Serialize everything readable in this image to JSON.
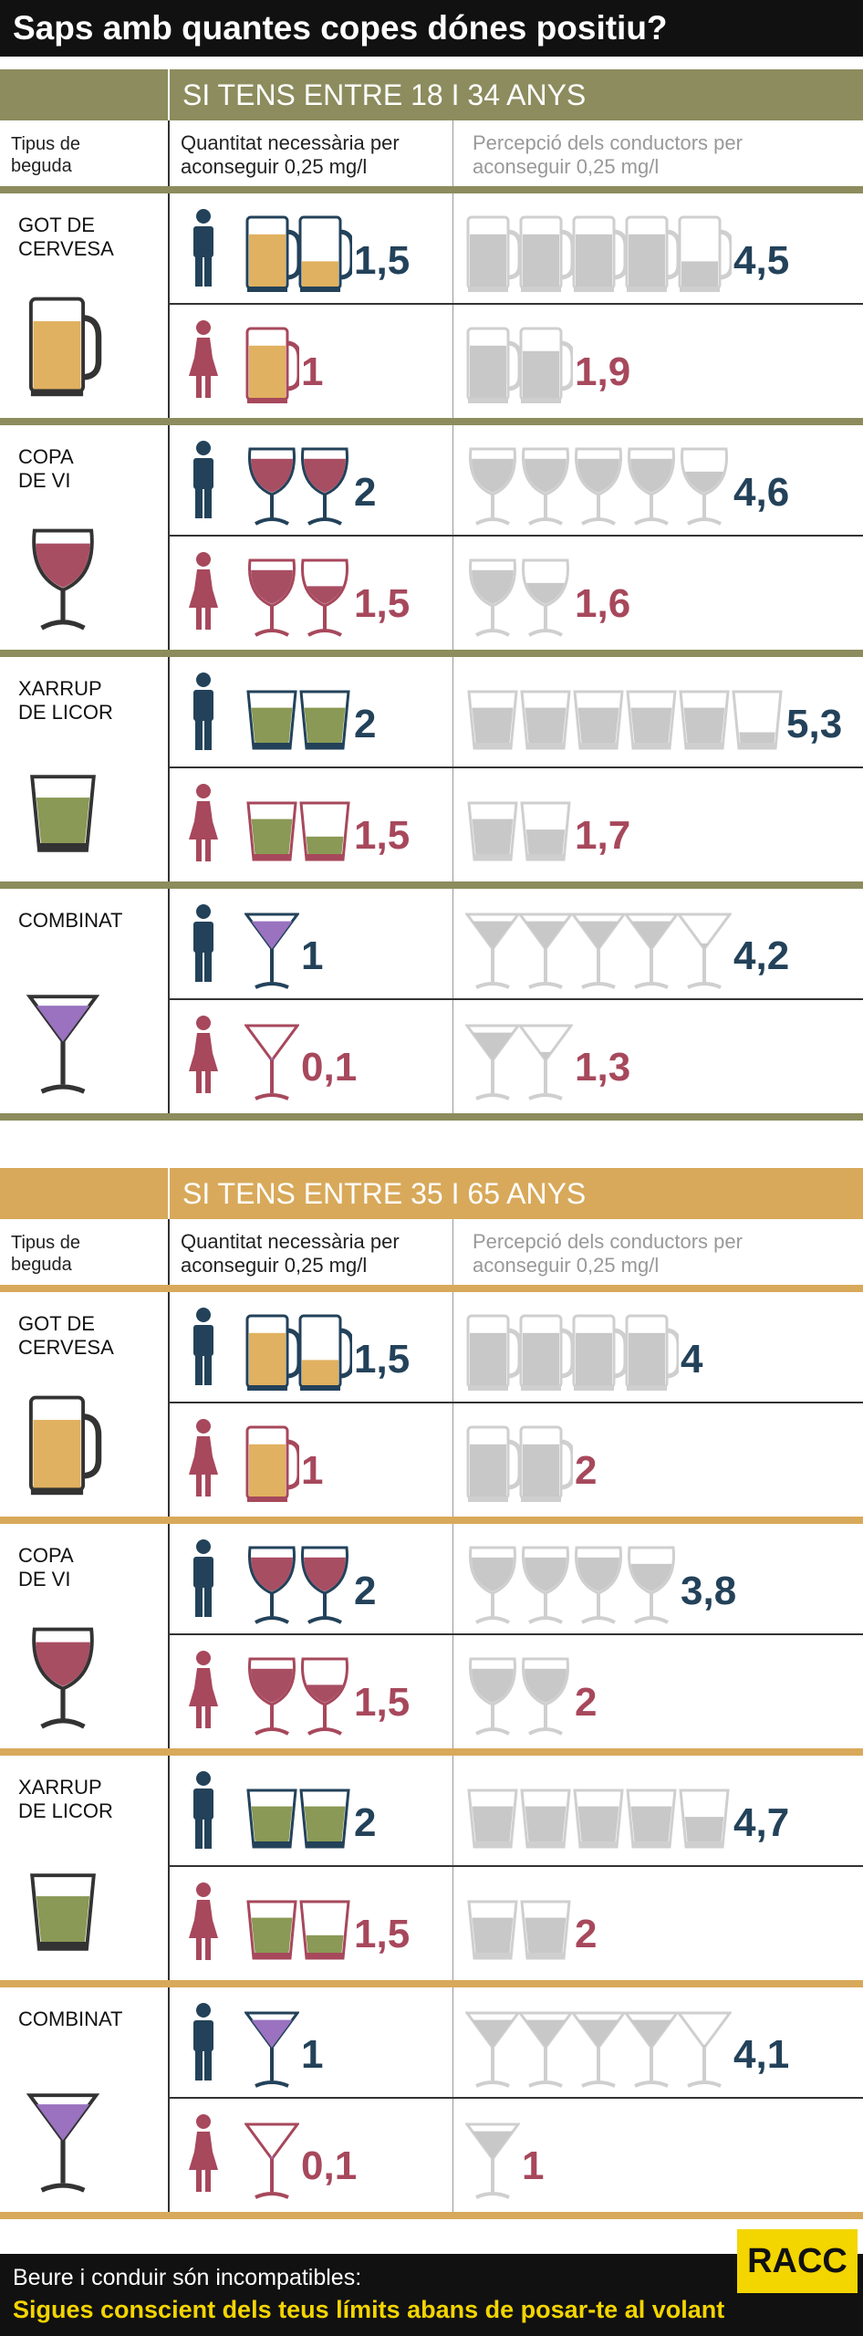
{
  "title": "Saps amb quantes copes dónes positiu?",
  "colors": {
    "band1": "#8c8c5e",
    "band2": "#d8a95a",
    "male": "#23425a",
    "female": "#a7485c",
    "beer": "#e0b160",
    "wine": "#a84e63",
    "liquor": "#8a9955",
    "cocktail": "#9a72c0",
    "grey": "#c8c8c8",
    "brand": "#f3d500"
  },
  "header": {
    "col1": "Tipus de\nbeguda",
    "col2": "Quantitat necessària per\naconseguir 0,25 mg/l",
    "col3": "Percepció dels conductors per\naconseguir 0,25 mg/l"
  },
  "sections": [
    {
      "band": "SI TENS ENTRE 18 I 34 ANYS",
      "drinks": [
        {
          "name": "GOT DE\nCERVESA",
          "icon": "beer-mug-icon",
          "male": {
            "value": "1,5",
            "amount": 1.5,
            "perceived": "4,5",
            "perceived_amount": 4.5
          },
          "female": {
            "value": "1",
            "amount": 1,
            "perceived": "1,9",
            "perceived_amount": 1.9
          }
        },
        {
          "name": "COPA\nDE VI",
          "icon": "wine-glass-icon",
          "male": {
            "value": "2",
            "amount": 2,
            "perceived": "4,6",
            "perceived_amount": 4.6
          },
          "female": {
            "value": "1,5",
            "amount": 1.5,
            "perceived": "1,6",
            "perceived_amount": 1.6
          }
        },
        {
          "name": "XARRUP\nDE LICOR",
          "icon": "shot-glass-icon",
          "male": {
            "value": "2",
            "amount": 2,
            "perceived": "5,3",
            "perceived_amount": 5.3
          },
          "female": {
            "value": "1,5",
            "amount": 1.5,
            "perceived": "1,7",
            "perceived_amount": 1.7
          }
        },
        {
          "name": "COMBINAT",
          "icon": "cocktail-glass-icon",
          "male": {
            "value": "1",
            "amount": 1,
            "perceived": "4,2",
            "perceived_amount": 4.2
          },
          "female": {
            "value": "0,1",
            "amount": 0.1,
            "perceived": "1,3",
            "perceived_amount": 1.3
          }
        }
      ]
    },
    {
      "band": "SI TENS ENTRE 35 I 65 ANYS",
      "drinks": [
        {
          "name": "GOT DE\nCERVESA",
          "icon": "beer-mug-icon",
          "male": {
            "value": "1,5",
            "amount": 1.5,
            "perceived": "4",
            "perceived_amount": 4
          },
          "female": {
            "value": "1",
            "amount": 1,
            "perceived": "2",
            "perceived_amount": 2
          }
        },
        {
          "name": "COPA\nDE VI",
          "icon": "wine-glass-icon",
          "male": {
            "value": "2",
            "amount": 2,
            "perceived": "3,8",
            "perceived_amount": 3.8
          },
          "female": {
            "value": "1,5",
            "amount": 1.5,
            "perceived": "2",
            "perceived_amount": 2
          }
        },
        {
          "name": "XARRUP\nDE LICOR",
          "icon": "shot-glass-icon",
          "male": {
            "value": "2",
            "amount": 2,
            "perceived": "4,7",
            "perceived_amount": 4.7
          },
          "female": {
            "value": "1,5",
            "amount": 1.5,
            "perceived": "2",
            "perceived_amount": 2
          }
        },
        {
          "name": "COMBINAT",
          "icon": "cocktail-glass-icon",
          "male": {
            "value": "1",
            "amount": 1,
            "perceived": "4,1",
            "perceived_amount": 4.1
          },
          "female": {
            "value": "0,1",
            "amount": 0.1,
            "perceived": "1",
            "perceived_amount": 1
          }
        }
      ]
    }
  ],
  "footer": {
    "line1": "Beure i conduir són incompatibles:",
    "line2": "Sigues conscient dels teus límits abans de posar-te al volant"
  },
  "logo": "RACC"
}
